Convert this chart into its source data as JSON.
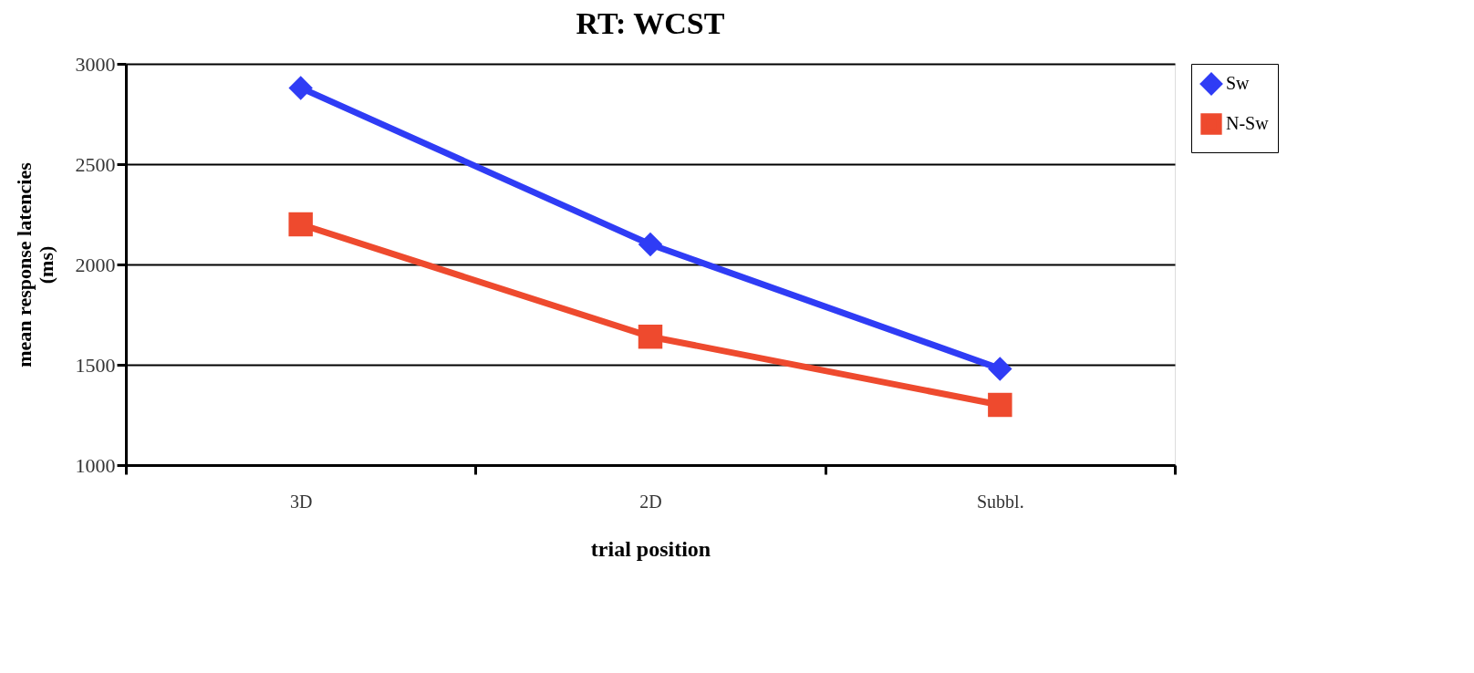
{
  "chart_data": {
    "type": "line",
    "title": "RT: WCST",
    "xlabel": "trial position",
    "ylabel": "mean response latencies\n(ms)",
    "categories": [
      "3D",
      "2D",
      "Subbl."
    ],
    "series": [
      {
        "name": "Sw",
        "color": "#2f3cf5",
        "marker": "diamond",
        "values": [
          2880,
          2100,
          1480
        ]
      },
      {
        "name": "N-Sw",
        "color": "#ee4a2e",
        "marker": "square",
        "values": [
          2200,
          1640,
          1300
        ]
      }
    ],
    "ylim": [
      1000,
      3000
    ],
    "yticks": [
      1000,
      1500,
      2000,
      2500,
      3000
    ],
    "grid": "y",
    "legend": "right",
    "line_style": "solid"
  }
}
